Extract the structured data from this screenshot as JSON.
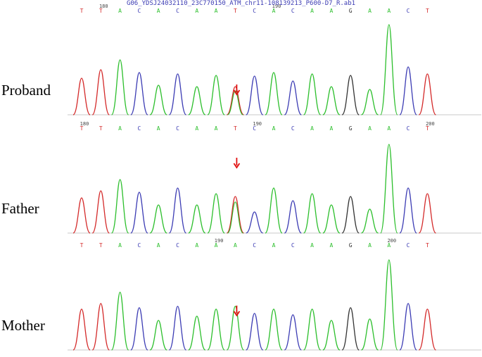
{
  "title": "G06_YDSJ24032110_23C770150_ATM_chr11-108139213_P600-D7_R.ab1",
  "colors": {
    "A": "#2cbf2c",
    "C": "#3c3cb4",
    "G": "#333333",
    "T": "#d42a2a",
    "arrow": "#e01010"
  },
  "panels": [
    {
      "label": "Proband",
      "bases": [
        "T",
        "T",
        "A",
        "C",
        "A",
        "C",
        "A",
        "A",
        "T",
        "C",
        "A",
        "C",
        "A",
        "A",
        "G",
        "A",
        "A",
        "C",
        "T"
      ],
      "heterozygous_index": 8,
      "secondary_base": "A",
      "position_marks": [
        {
          "value": "180",
          "index": 1
        },
        {
          "value": "190",
          "index": 10
        }
      ]
    },
    {
      "label": "Father",
      "bases": [
        "T",
        "T",
        "A",
        "C",
        "A",
        "C",
        "A",
        "A",
        "T",
        "C",
        "A",
        "C",
        "A",
        "A",
        "G",
        "A",
        "A",
        "C",
        "T"
      ],
      "heterozygous_index": 8,
      "secondary_base": "A",
      "position_marks": [
        {
          "value": "180",
          "index": 0
        },
        {
          "value": "190",
          "index": 9
        },
        {
          "value": "200",
          "index": 18
        }
      ]
    },
    {
      "label": "Mother",
      "bases": [
        "T",
        "T",
        "A",
        "C",
        "A",
        "C",
        "A",
        "A",
        "A",
        "C",
        "A",
        "C",
        "A",
        "A",
        "G",
        "A",
        "A",
        "C",
        "T"
      ],
      "heterozygous_index": null,
      "secondary_base": "",
      "position_marks": [
        {
          "value": "190",
          "index": 7
        },
        {
          "value": "200",
          "index": 16
        }
      ]
    }
  ]
}
